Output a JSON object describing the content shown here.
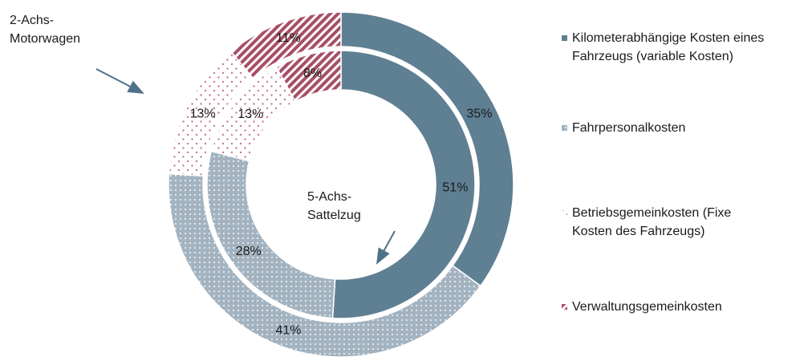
{
  "chart_data": {
    "type": "donut",
    "categories": [
      "Kilometerabhängige Kosten eines Fahrzeugs (variable Kosten)",
      "Fahrpersonalkosten",
      "Betriebsgemeinkosten (Fixe\nKosten des Fahrzeugs)",
      "Verwaltungsgemeinkosten"
    ],
    "colors": [
      "#5f7f93",
      "#a3b3c0",
      "#c77a8e",
      "#a84e67"
    ],
    "series": [
      {
        "name": "2-Achs-\nMotorwagen",
        "values": [
          35,
          41,
          13,
          11
        ]
      },
      {
        "name": "5-Achs-\nSattelzug",
        "values": [
          51,
          28,
          13,
          8
        ]
      }
    ],
    "value_labels": [
      [
        "35%",
        "41%",
        "13%",
        "11%"
      ],
      [
        "51%",
        "28%",
        "13%",
        "8%"
      ]
    ]
  }
}
